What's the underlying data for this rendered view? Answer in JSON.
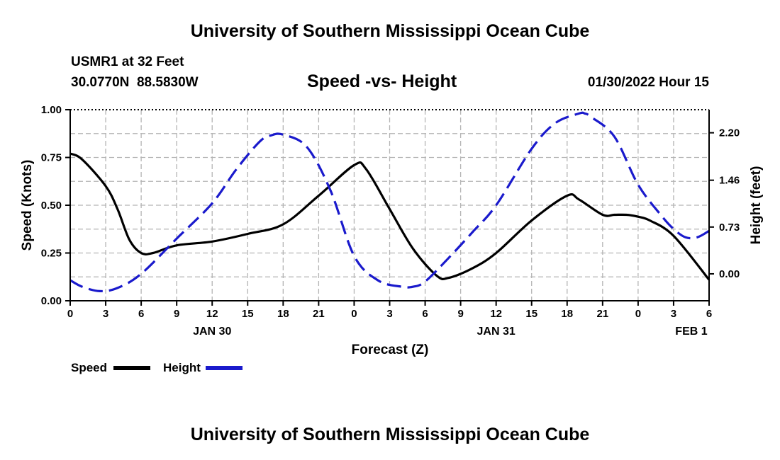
{
  "header": {
    "title": "University of Southern Mississippi Ocean Cube",
    "station": "USMR1 at 32 Feet",
    "coords": "30.0770N  88.5830W",
    "chart_title": "Speed -vs- Height",
    "datetime": "01/30/2022 Hour 15"
  },
  "footer": {
    "title": "University of Southern Mississippi Ocean Cube"
  },
  "legend": {
    "speed_label": "Speed",
    "height_label": "Height"
  },
  "colors": {
    "speed": "#000000",
    "height": "#1a1acc",
    "grid": "#b4b4b4"
  },
  "chart_data": {
    "type": "line",
    "title": "Speed -vs- Height",
    "xlabel": "Forecast (Z)",
    "ylabel_left": "Speed (Knots)",
    "ylabel_right": "Height (feet)",
    "x_range": [
      0,
      54
    ],
    "x_ticks": [
      0,
      3,
      6,
      9,
      12,
      15,
      18,
      21,
      24,
      27,
      30,
      33,
      36,
      39,
      42,
      45,
      48,
      51,
      54
    ],
    "x_tick_labels": [
      "0",
      "3",
      "6",
      "9",
      "12",
      "15",
      "18",
      "21",
      "0",
      "3",
      "6",
      "9",
      "12",
      "15",
      "18",
      "21",
      "0",
      "3",
      "6"
    ],
    "date_labels": [
      {
        "x": 12,
        "label": "JAN 30"
      },
      {
        "x": 36,
        "label": "JAN 31"
      },
      {
        "x": 52.5,
        "label": "FEB 1"
      }
    ],
    "left_axis": {
      "range": [
        0,
        1
      ],
      "ticks": [
        0,
        0.25,
        0.5,
        0.75,
        1.0
      ],
      "tick_labels": [
        "0.00",
        "0.25",
        "0.50",
        "0.75",
        "1.00"
      ]
    },
    "right_axis": {
      "range": [
        -0.42,
        2.56
      ],
      "ticks": [
        0,
        0.73,
        1.46,
        2.2
      ],
      "tick_labels": [
        "0.00",
        "0.73",
        "1.46",
        "2.20"
      ]
    },
    "grid": true,
    "series": [
      {
        "name": "Speed",
        "axis": "left",
        "style": "solid",
        "x": [
          0,
          1,
          3,
          4,
          5,
          6,
          7,
          9,
          12,
          15,
          18,
          21,
          24,
          25,
          27,
          29,
          31,
          32,
          34,
          36,
          39,
          42,
          43,
          45,
          46,
          47,
          48,
          49,
          51,
          54
        ],
        "y": [
          0.77,
          0.74,
          0.6,
          0.48,
          0.32,
          0.25,
          0.25,
          0.29,
          0.31,
          0.35,
          0.4,
          0.55,
          0.71,
          0.69,
          0.48,
          0.27,
          0.13,
          0.12,
          0.17,
          0.25,
          0.42,
          0.55,
          0.53,
          0.45,
          0.45,
          0.45,
          0.44,
          0.42,
          0.34,
          0.11
        ]
      },
      {
        "name": "Height",
        "axis": "right",
        "style": "dashed",
        "x": [
          0,
          1,
          2.5,
          4,
          6,
          9,
          12,
          14,
          16,
          17,
          18,
          20,
          22,
          24,
          26,
          28,
          29,
          30,
          32,
          34,
          36,
          39,
          41,
          43,
          43.5,
          44,
          46,
          48,
          50,
          51,
          52,
          53,
          54
        ],
        "y": [
          -0.1,
          -0.2,
          -0.27,
          -0.22,
          0.0,
          0.55,
          1.1,
          1.62,
          2.06,
          2.16,
          2.17,
          1.98,
          1.3,
          0.28,
          -0.1,
          -0.2,
          -0.2,
          -0.12,
          0.25,
          0.65,
          1.07,
          1.95,
          2.35,
          2.5,
          2.5,
          2.45,
          2.14,
          1.39,
          0.9,
          0.7,
          0.57,
          0.57,
          0.67
        ]
      }
    ]
  }
}
